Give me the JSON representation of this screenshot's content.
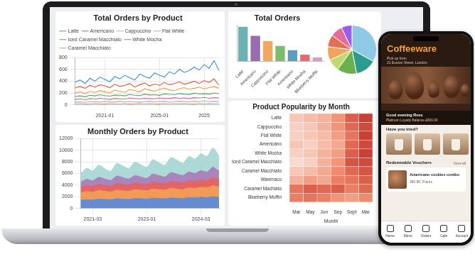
{
  "chart_data": [
    {
      "type": "line",
      "title": "Total Orders by Product",
      "categories": [
        null,
        null,
        null,
        null,
        null,
        null,
        "2021-01",
        null,
        null,
        null,
        null,
        null,
        null,
        null,
        null,
        null,
        null,
        "2025-01",
        null,
        null,
        null,
        null,
        null,
        null,
        null,
        null,
        "2025",
        null,
        null,
        null
      ],
      "series": [
        {
          "name": "Latte",
          "color": "#3d8fd6",
          "values": [
            380,
            420,
            360,
            450,
            400,
            470,
            430,
            390,
            480,
            440,
            500,
            460,
            420,
            520,
            480,
            450,
            540,
            500,
            470,
            560,
            520,
            600,
            550,
            580,
            640,
            590,
            680,
            620,
            750,
            580
          ]
        },
        {
          "name": "Americano",
          "color": "#e8553e",
          "values": [
            290,
            310,
            280,
            330,
            300,
            340,
            320,
            290,
            350,
            310,
            330,
            360,
            300,
            340,
            370,
            320,
            350,
            330,
            380,
            340,
            360,
            390,
            350,
            370,
            400,
            360,
            410,
            380,
            440,
            330
          ]
        },
        {
          "name": "Cappuccino",
          "color": "#d9ae84",
          "values": [
            20,
            25,
            15,
            20,
            25,
            20,
            15,
            25,
            20,
            20,
            25,
            15,
            20,
            25,
            20,
            25,
            20,
            15,
            25,
            20,
            25,
            20,
            25,
            20,
            15,
            25,
            20,
            25,
            20,
            25
          ]
        },
        {
          "name": "Flat White",
          "color": "#b0b0b0",
          "values": [
            45,
            50,
            40,
            55,
            50,
            45,
            55,
            50,
            45,
            60,
            50,
            55,
            50,
            45,
            55,
            60,
            50,
            55,
            60,
            50,
            55,
            60,
            55,
            50,
            60,
            55,
            65,
            55,
            60,
            55
          ]
        },
        {
          "name": "Iced Caramel Macchiato",
          "color": "#4caf50",
          "values": [
            140,
            150,
            135,
            160,
            150,
            170,
            155,
            145,
            165,
            160,
            150,
            175,
            160,
            155,
            180,
            165,
            170,
            160,
            185,
            175,
            170,
            190,
            180,
            175,
            195,
            185,
            190,
            180,
            200,
            185
          ]
        },
        {
          "name": "White Mocha",
          "color": "#e05d9a",
          "values": [
            90,
            100,
            85,
            105,
            95,
            110,
            100,
            90,
            105,
            100,
            95,
            115,
            105,
            100,
            110,
            105,
            100,
            115,
            110,
            105,
            120,
            110,
            115,
            105,
            120,
            115,
            125,
            110,
            120,
            115
          ]
        },
        {
          "name": "Caramel Macchiato",
          "color": "#f29a38",
          "values": [
            200,
            220,
            190,
            230,
            210,
            240,
            220,
            200,
            250,
            230,
            210,
            260,
            240,
            220,
            270,
            250,
            230,
            260,
            280,
            250,
            240,
            270,
            290,
            260,
            280,
            300,
            270,
            290,
            310,
            280
          ]
        }
      ],
      "ylim": [
        0,
        800
      ],
      "yticks": [
        0,
        200,
        400,
        600,
        800
      ],
      "grid": true,
      "legend": "top"
    },
    {
      "type": "line",
      "title": "Monthly Orders by Product",
      "stacked": true,
      "categories": [
        null,
        null,
        "2021-03",
        null,
        null,
        null,
        null,
        null,
        null,
        null,
        null,
        "2023-01",
        null,
        null,
        null,
        null,
        null,
        null,
        null,
        null,
        "2024-03",
        null,
        null,
        null
      ],
      "series": [
        {
          "color": "#4a78c8",
          "values": [
            1400,
            1500,
            1450,
            1600,
            1550,
            1500,
            1650,
            1600,
            1550,
            1700,
            1650,
            1600,
            1750,
            1700,
            1650,
            1800,
            1750,
            1700,
            1850,
            1800,
            1900,
            1850,
            2000,
            1900
          ]
        },
        {
          "color": "#f08a3c",
          "values": [
            1300,
            1400,
            1350,
            1500,
            1400,
            1350,
            1500,
            1450,
            1400,
            1550,
            1500,
            1450,
            1600,
            1550,
            1500,
            1650,
            1600,
            1550,
            1700,
            1650,
            1750,
            1700,
            1900,
            1750
          ]
        },
        {
          "color": "#e04a4a",
          "values": [
            900,
            1000,
            950,
            1050,
            1000,
            950,
            1100,
            1050,
            1000,
            1100,
            1050,
            1000,
            1150,
            1100,
            1050,
            1200,
            1150,
            1100,
            1200,
            1150,
            1250,
            1200,
            1400,
            1250
          ]
        },
        {
          "color": "#9b6fb0",
          "values": [
            900,
            1100,
            1000,
            1200,
            1100,
            1000,
            1300,
            1200,
            1100,
            1300,
            1200,
            1100,
            1400,
            1300,
            1200,
            1500,
            1400,
            1300,
            1500,
            1400,
            1600,
            1500,
            1800,
            1500
          ]
        },
        {
          "color": "#9fd3cf",
          "values": [
            1500,
            1900,
            1700,
            2100,
            1800,
            1600,
            2200,
            2000,
            1800,
            2300,
            2100,
            1900,
            2500,
            2200,
            2000,
            2600,
            2400,
            2100,
            2700,
            2500,
            2900,
            2700,
            3300,
            2600
          ]
        }
      ],
      "ylim": [
        0,
        12000
      ],
      "yticks": [
        0,
        2000,
        4000,
        6000,
        8000,
        10000,
        12000
      ],
      "grid": true
    },
    {
      "type": "bar",
      "title": "Total Orders",
      "categories": [
        "Latte",
        "Americano",
        "Cappuccino",
        "Flat White",
        "Americano",
        "White Mocha",
        "Blueberry Muffin"
      ],
      "values": [
        95,
        70,
        55,
        42,
        30,
        18,
        10
      ],
      "colors": [
        "#6bb3b3",
        "#9a6cb0",
        "#f0a860",
        "#7dbb6d",
        "#5a9fc0",
        "#e36b6b",
        "#e09ac0"
      ],
      "ylim": [
        0,
        100
      ],
      "tick_labels": "x",
      "grid": false
    },
    {
      "type": "pie",
      "values": [
        33,
        14,
        13,
        8,
        9,
        8,
        8,
        7
      ],
      "colors": [
        "#8ecae6",
        "#2a9d8f",
        "#6ab04c",
        "#c5d86d",
        "#f4a261",
        "#e76f51",
        "#e66a9a",
        "#9b5de5"
      ]
    },
    {
      "type": "heatmap",
      "title": "Product Popularity by Month",
      "categories": [
        "Mar",
        "May",
        "Jun",
        "Sep",
        "Sept",
        "Mar"
      ],
      "rows": [
        "Latte",
        "Cappuccino",
        "Flat White",
        "Americano",
        "White Mocha",
        "Iced Caramel Macchiato",
        "Caramel Macchiato",
        "Warenaco",
        "Caramel Machiato",
        "Blueberry Muffin"
      ],
      "cells": [
        [
          20,
          25,
          30,
          45,
          70,
          85
        ],
        [
          15,
          20,
          30,
          45,
          65,
          80
        ],
        [
          15,
          20,
          25,
          40,
          60,
          85
        ],
        [
          20,
          15,
          25,
          35,
          65,
          80
        ],
        [
          15,
          20,
          30,
          40,
          70,
          85
        ],
        [
          10,
          15,
          30,
          45,
          75,
          80
        ],
        [
          20,
          25,
          35,
          50,
          65,
          75
        ],
        [
          30,
          40,
          35,
          55,
          60,
          70
        ],
        [
          60,
          70,
          65,
          70,
          55,
          65
        ],
        [
          55,
          60,
          55,
          45,
          40,
          50
        ]
      ],
      "xlabel": "Month",
      "clim": [
        0,
        100
      ]
    }
  ],
  "phone": {
    "brand": "Coffeeware",
    "pickup": "Pick up from",
    "address": "21 Euston Street, London",
    "greeting": "Good evening Ross",
    "balance": "Platinum Loyalty Balance £600.00",
    "section_tried": "Have you tried?",
    "section_vouchers": "Redeemable Vouchers",
    "view_all": "View all",
    "voucher_title": "Americano cookies combo",
    "voucher_points": "380 BC Points",
    "nav": [
      "Home",
      "Menu",
      "Orders",
      "Cafe",
      "Account"
    ]
  }
}
